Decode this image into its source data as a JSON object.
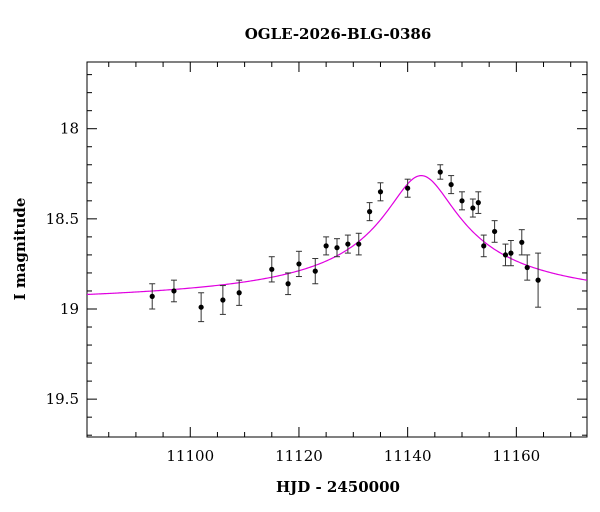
{
  "chart_data": {
    "type": "scatter",
    "title": "OGLE-2026-BLG-0386",
    "xlabel": "HJD - 2450000",
    "ylabel": "I magnitude",
    "xlim": [
      11081,
      11173
    ],
    "ylim": [
      19.71,
      17.63
    ],
    "y_inverted": true,
    "x_major_ticks": [
      11100,
      11120,
      11140,
      11160
    ],
    "x_minor_step": 5,
    "y_major_ticks": [
      18,
      18.5,
      19,
      19.5
    ],
    "y_tick_labels": [
      "18",
      "18.5",
      "19",
      "19.5"
    ],
    "y_minor_step": 0.1,
    "series": [
      {
        "kind": "points",
        "color": "#000000",
        "points": [
          {
            "x": 11093.0,
            "y": 18.93,
            "err": 0.07
          },
          {
            "x": 11097.0,
            "y": 18.9,
            "err": 0.06
          },
          {
            "x": 11102.0,
            "y": 18.99,
            "err": 0.08
          },
          {
            "x": 11106.0,
            "y": 18.95,
            "err": 0.08
          },
          {
            "x": 11109.0,
            "y": 18.91,
            "err": 0.07
          },
          {
            "x": 11115.0,
            "y": 18.78,
            "err": 0.07
          },
          {
            "x": 11118.0,
            "y": 18.86,
            "err": 0.06
          },
          {
            "x": 11120.0,
            "y": 18.75,
            "err": 0.07
          },
          {
            "x": 11123.0,
            "y": 18.79,
            "err": 0.07
          },
          {
            "x": 11125.0,
            "y": 18.65,
            "err": 0.05
          },
          {
            "x": 11127.0,
            "y": 18.66,
            "err": 0.05
          },
          {
            "x": 11129.0,
            "y": 18.64,
            "err": 0.05
          },
          {
            "x": 11131.0,
            "y": 18.64,
            "err": 0.06
          },
          {
            "x": 11133.0,
            "y": 18.46,
            "err": 0.05
          },
          {
            "x": 11135.0,
            "y": 18.35,
            "err": 0.05
          },
          {
            "x": 11140.0,
            "y": 18.33,
            "err": 0.05
          },
          {
            "x": 11146.0,
            "y": 18.24,
            "err": 0.04
          },
          {
            "x": 11148.0,
            "y": 18.31,
            "err": 0.05
          },
          {
            "x": 11150.0,
            "y": 18.4,
            "err": 0.05
          },
          {
            "x": 11152.0,
            "y": 18.44,
            "err": 0.05
          },
          {
            "x": 11153.0,
            "y": 18.41,
            "err": 0.06
          },
          {
            "x": 11154.0,
            "y": 18.65,
            "err": 0.06
          },
          {
            "x": 11156.0,
            "y": 18.57,
            "err": 0.06
          },
          {
            "x": 11158.0,
            "y": 18.7,
            "err": 0.06
          },
          {
            "x": 11159.0,
            "y": 18.69,
            "err": 0.07
          },
          {
            "x": 11161.0,
            "y": 18.63,
            "err": 0.07
          },
          {
            "x": 11162.0,
            "y": 18.77,
            "err": 0.07
          },
          {
            "x": 11164.0,
            "y": 18.84,
            "err": 0.15
          }
        ]
      },
      {
        "kind": "model",
        "color": "#e000e0",
        "baseline": 19.0,
        "peak_x": 11142.5,
        "peak_mag": 18.26,
        "width": 10
      }
    ]
  }
}
